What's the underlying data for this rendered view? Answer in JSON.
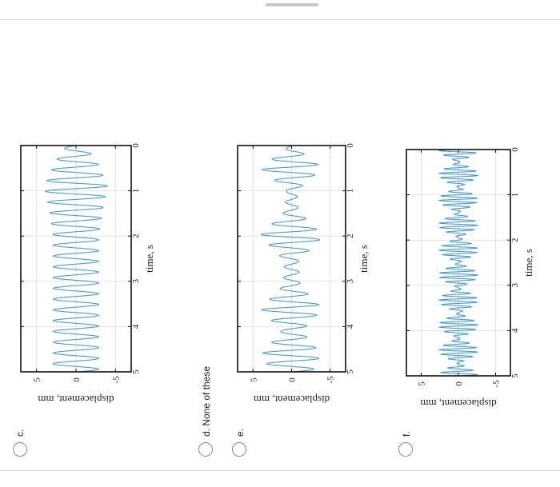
{
  "options": {
    "c": {
      "label": "c."
    },
    "d": {
      "label": "d.",
      "text": "None of these"
    },
    "e": {
      "label": "e."
    },
    "f": {
      "label": "f."
    }
  },
  "chart_data": [
    {
      "type": "line",
      "option": "c.",
      "xlabel": "time, s",
      "ylabel": "displacement, mm",
      "xlim": [
        0,
        5
      ],
      "ylim": [
        -7,
        7
      ],
      "xticks": [
        "0",
        "1",
        "2",
        "3",
        "4",
        "5"
      ],
      "yticks": [
        "5",
        "0",
        "-5"
      ],
      "grid": true,
      "series": [
        {
          "color": "#4a9bd4",
          "frequency_hz": 4.2,
          "amplitude_peak_mm": 4.0,
          "envelope": [
            [
              0,
              0.3
            ],
            [
              0.4,
              0.7
            ],
            [
              0.9,
              1.0
            ],
            [
              1.4,
              0.85
            ],
            [
              2.0,
              0.72
            ],
            [
              3.0,
              0.72
            ],
            [
              5.0,
              0.72
            ]
          ]
        }
      ]
    },
    {
      "type": "line",
      "option": "e.",
      "xlabel": "time, s",
      "ylabel": "displacement, mm",
      "xlim": [
        0,
        5
      ],
      "ylim": [
        -7,
        7
      ],
      "xticks": [
        "0",
        "1",
        "2",
        "3",
        "4",
        "5"
      ],
      "yticks": [
        "5",
        "0",
        "-5"
      ],
      "grid": true,
      "series": [
        {
          "color": "#4a9bd4",
          "frequency_hz": 4.2,
          "amplitude_peak_mm": 4.5,
          "envelope": [
            [
              0,
              0.05
            ],
            [
              0.5,
              0.9
            ],
            [
              1.0,
              0.15
            ],
            [
              1.45,
              0.2
            ],
            [
              2.0,
              0.92
            ],
            [
              2.55,
              0.2
            ],
            [
              3.1,
              0.25
            ],
            [
              3.6,
              0.9
            ],
            [
              4.1,
              0.3
            ],
            [
              4.6,
              0.85
            ],
            [
              5.0,
              0.6
            ]
          ]
        }
      ]
    },
    {
      "type": "line",
      "option": "f.",
      "xlabel": "time, s",
      "ylabel": "displacement, mm",
      "xlim": [
        0,
        5
      ],
      "ylim": [
        -7,
        7
      ],
      "xticks": [
        "0",
        "1",
        "2",
        "3",
        "4",
        "5"
      ],
      "yticks": [
        "5",
        "0",
        "-5"
      ],
      "grid": true,
      "series": [
        {
          "color": "#4a9bd4",
          "frequency_hz": 10,
          "amplitude_peak_mm": 2.6,
          "beat_frequency_hz": 1.8
        }
      ]
    }
  ]
}
